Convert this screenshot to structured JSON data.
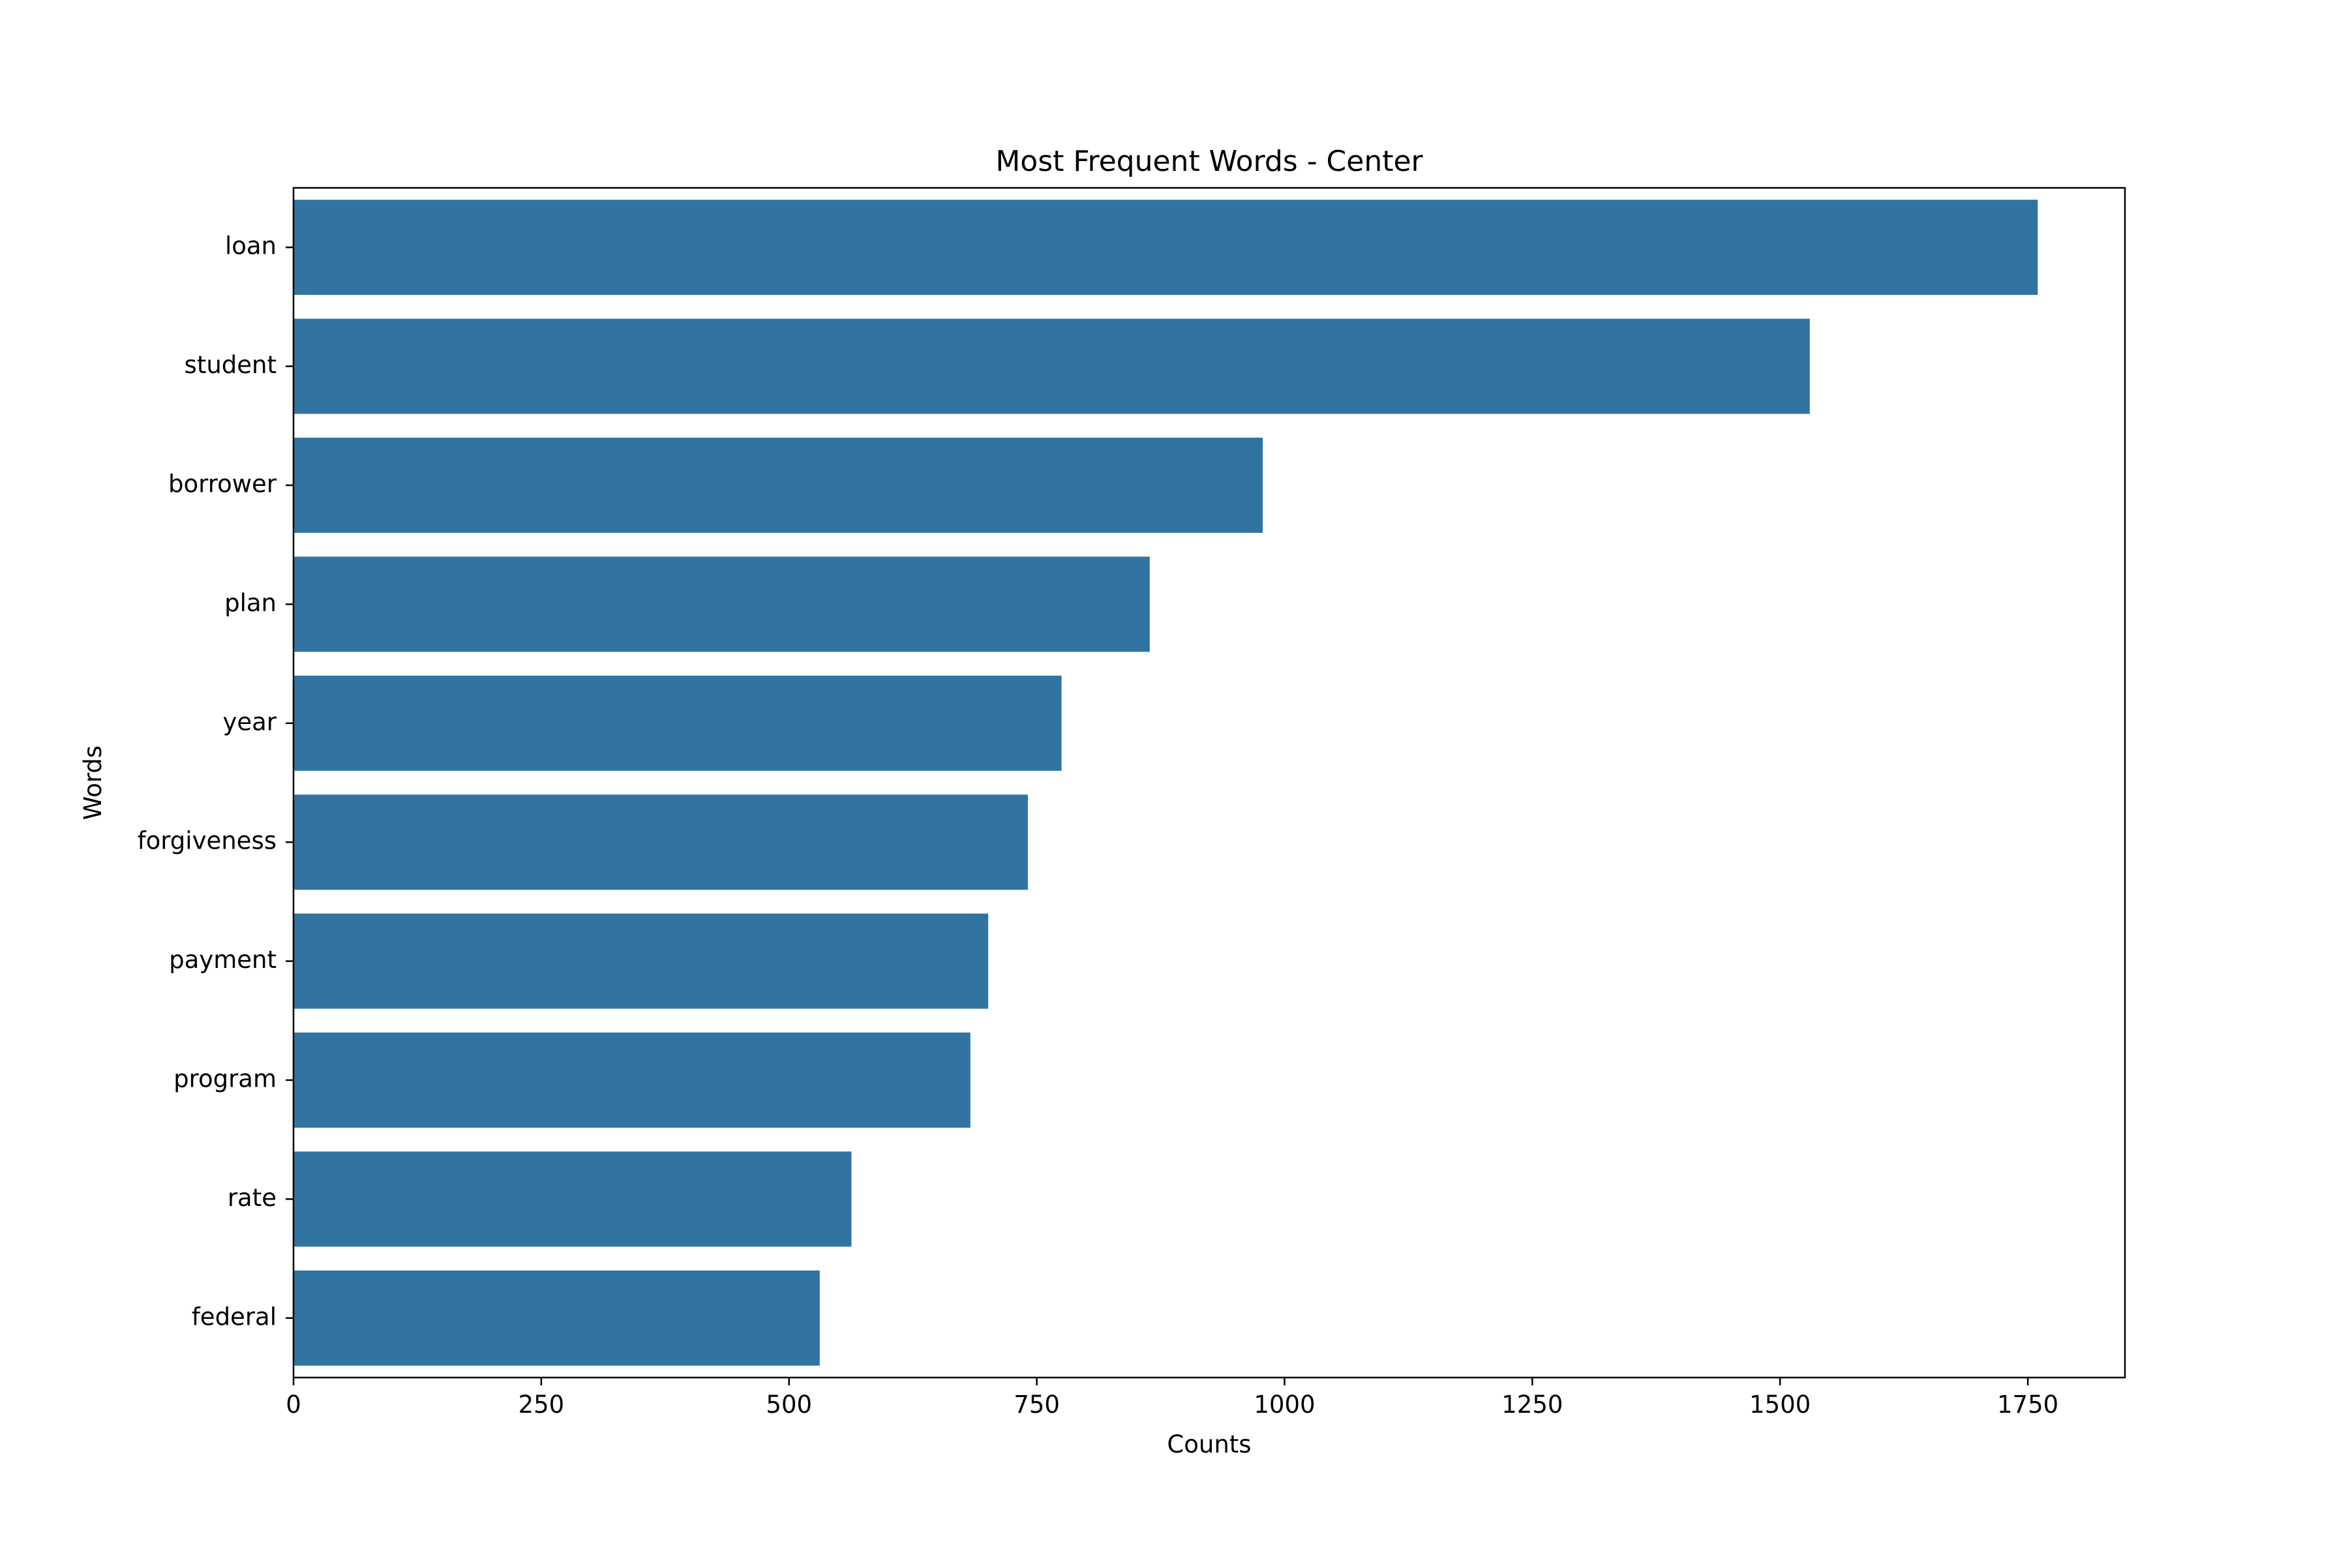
{
  "chart_data": {
    "type": "bar",
    "orientation": "horizontal",
    "title": "Most Frequent Words - Center",
    "xlabel": "Counts",
    "ylabel": "Words",
    "categories": [
      "loan",
      "student",
      "borrower",
      "plan",
      "year",
      "forgiveness",
      "payment",
      "program",
      "rate",
      "federal"
    ],
    "values": [
      1760,
      1530,
      978,
      864,
      775,
      741,
      701,
      683,
      563,
      531
    ],
    "xlim": [
      0,
      1848
    ],
    "xticks": [
      0,
      250,
      500,
      750,
      1000,
      1250,
      1500,
      1750
    ],
    "grid": false,
    "legend": "none",
    "bar_color": "#3274a1"
  }
}
